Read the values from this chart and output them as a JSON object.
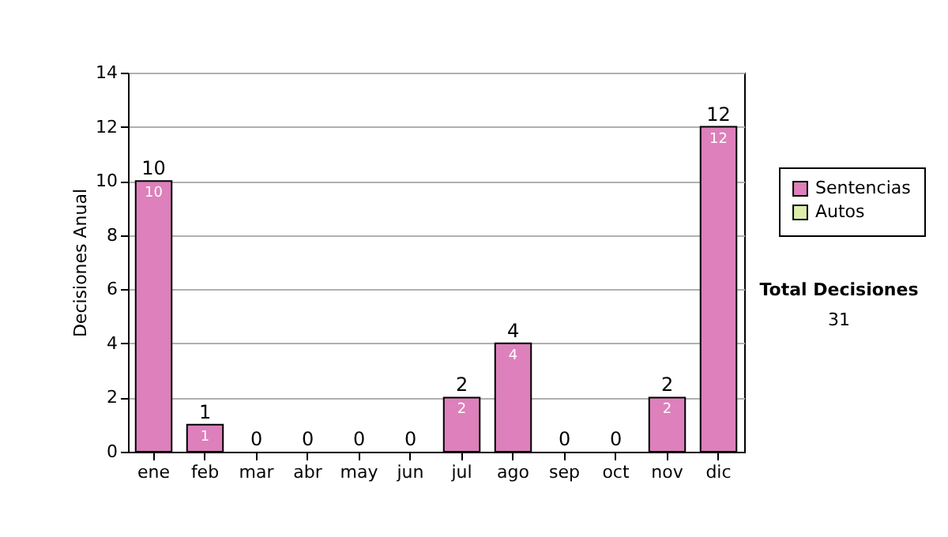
{
  "chart_data": {
    "type": "bar",
    "ylabel": "Decisiones Anual",
    "categories": [
      "ene",
      "feb",
      "mar",
      "abr",
      "may",
      "jun",
      "jul",
      "ago",
      "sep",
      "oct",
      "nov",
      "dic"
    ],
    "series": [
      {
        "name": "Sentencias",
        "color": "#dd80bb",
        "values": [
          10,
          1,
          0,
          0,
          0,
          0,
          2,
          4,
          0,
          0,
          2,
          12
        ],
        "value_labels": [
          "10",
          "1",
          null,
          null,
          null,
          null,
          "2",
          "4",
          null,
          null,
          "2",
          "12"
        ]
      },
      {
        "name": "Autos",
        "color": "#ddeeaa",
        "values": [
          0,
          0,
          0,
          0,
          0,
          0,
          0,
          0,
          0,
          0,
          0,
          0
        ]
      }
    ],
    "stacked": true,
    "totals": [
      "10",
      "1",
      "0",
      "0",
      "0",
      "0",
      "2",
      "4",
      "0",
      "0",
      "2",
      "12"
    ],
    "ylim": [
      0,
      14
    ],
    "yticks": [
      0,
      2,
      4,
      6,
      8,
      10,
      12,
      14
    ],
    "grid": "y",
    "legend": "right",
    "annotations": [
      "Total Decisiones",
      "31"
    ]
  }
}
